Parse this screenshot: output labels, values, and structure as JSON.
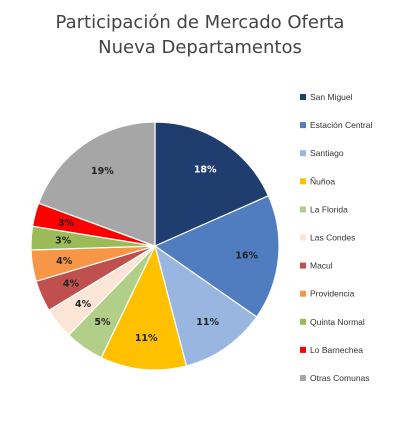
{
  "chart_data": {
    "type": "pie",
    "title_lines": [
      "Participación de Mercado Oferta",
      "Nueva Departamentos"
    ],
    "start_angle": 0,
    "direction": "clockwise",
    "legend_position": "right",
    "slices": [
      {
        "label": "San Miguel",
        "value": 18,
        "display": "18%",
        "color": "#1f3d6e",
        "text_color": "#ffffff"
      },
      {
        "label": "Estación Central",
        "value": 16,
        "display": "16%",
        "color": "#4f7dbf",
        "text_color": "#222222"
      },
      {
        "label": "Santiago",
        "value": 11,
        "display": "11%",
        "color": "#98b6e0",
        "text_color": "#222222"
      },
      {
        "label": "Ñuñoa",
        "value": 11,
        "display": "11%",
        "color": "#ffc000",
        "text_color": "#222222"
      },
      {
        "label": "La Florida",
        "value": 5,
        "display": "5%",
        "color": "#b2cf8a",
        "text_color": "#222222"
      },
      {
        "label": "Las Condes",
        "value": 4,
        "display": "4%",
        "color": "#fbe5d6",
        "text_color": "#222222"
      },
      {
        "label": "Macul",
        "value": 4,
        "display": "4%",
        "color": "#c0504d",
        "text_color": "#222222"
      },
      {
        "label": "Providencia",
        "value": 4,
        "display": "4%",
        "color": "#f79646",
        "text_color": "#222222"
      },
      {
        "label": "Quinta Normal",
        "value": 3,
        "display": "3%",
        "color": "#9bbb59",
        "text_color": "#222222"
      },
      {
        "label": "Lo Barnechea",
        "value": 3,
        "display": "3%",
        "color": "#ff0000",
        "text_color": "#222222"
      },
      {
        "label": "Otras Comunas",
        "value": 19,
        "display": "19%",
        "color": "#a6a6a6",
        "text_color": "#222222"
      }
    ]
  }
}
